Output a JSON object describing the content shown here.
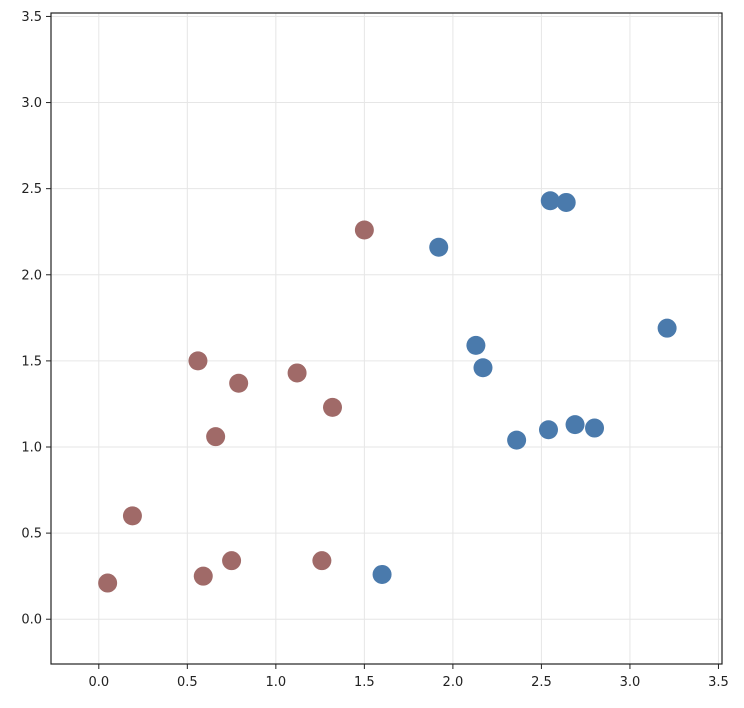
{
  "chart_data": {
    "type": "scatter",
    "title": "",
    "xlabel": "",
    "ylabel": "",
    "xlim": [
      -0.27,
      3.52
    ],
    "ylim": [
      -0.26,
      3.52
    ],
    "grid": true,
    "xticks": [
      0.0,
      0.5,
      1.0,
      1.5,
      2.0,
      2.5,
      3.0,
      3.5
    ],
    "yticks": [
      0.0,
      0.5,
      1.0,
      1.5,
      2.0,
      2.5,
      3.0,
      3.5
    ],
    "xtick_labels": [
      "0.0",
      "0.5",
      "1.0",
      "1.5",
      "2.0",
      "2.5",
      "3.0",
      "3.5"
    ],
    "ytick_labels": [
      "0.0",
      "0.5",
      "1.0",
      "1.5",
      "2.0",
      "2.5",
      "3.0",
      "3.5"
    ],
    "series": [
      {
        "color": "#a06a68",
        "x": [
          0.05,
          0.19,
          0.56,
          0.59,
          0.66,
          0.75,
          0.79,
          1.12,
          1.26,
          1.32,
          1.5
        ],
        "y": [
          0.21,
          0.6,
          1.5,
          0.25,
          1.06,
          0.34,
          1.37,
          1.43,
          0.34,
          1.23,
          2.26
        ]
      },
      {
        "color": "#4a7aac",
        "x": [
          1.6,
          1.92,
          2.13,
          2.17,
          2.36,
          2.54,
          2.55,
          2.64,
          2.69,
          2.8,
          3.21
        ],
        "y": [
          0.26,
          2.16,
          1.59,
          1.46,
          1.04,
          1.1,
          2.43,
          2.42,
          1.13,
          1.11,
          1.69
        ]
      }
    ]
  }
}
